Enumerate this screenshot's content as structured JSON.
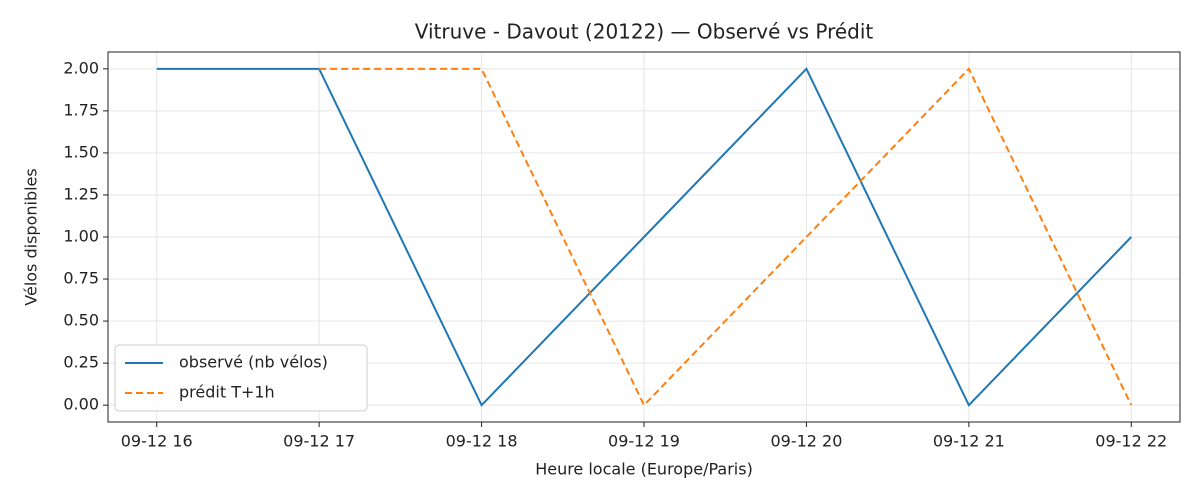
{
  "chart_data": {
    "type": "line",
    "title": "Vitruve - Davout (20122) — Observé vs Prédit",
    "xlabel": "Heure locale (Europe/Paris)",
    "ylabel": "Vélos disponibles",
    "categories": [
      "09-12 16",
      "09-12 17",
      "09-12 18",
      "09-12 19",
      "09-12 20",
      "09-12 21",
      "09-12 22"
    ],
    "series": [
      {
        "name": "observé (nb vélos)",
        "color": "#1f77b4",
        "dash": false,
        "values": [
          2,
          2,
          0,
          1,
          2,
          0,
          1
        ]
      },
      {
        "name": "prédit T+1h",
        "color": "#ff7f0e",
        "dash": true,
        "values": [
          null,
          2,
          2,
          0,
          1,
          2,
          0
        ]
      }
    ],
    "ylim": [
      -0.1,
      2.1
    ],
    "yticks": [
      {
        "value": 0,
        "label": "0.00"
      },
      {
        "value": 0.25,
        "label": "0.25"
      },
      {
        "value": 0.5,
        "label": "0.50"
      },
      {
        "value": 0.75,
        "label": "0.75"
      },
      {
        "value": 1,
        "label": "1.00"
      },
      {
        "value": 1.25,
        "label": "1.25"
      },
      {
        "value": 1.5,
        "label": "1.50"
      },
      {
        "value": 1.75,
        "label": "1.75"
      },
      {
        "value": 2,
        "label": "2.00"
      }
    ],
    "grid": true,
    "legend": "lower left"
  }
}
